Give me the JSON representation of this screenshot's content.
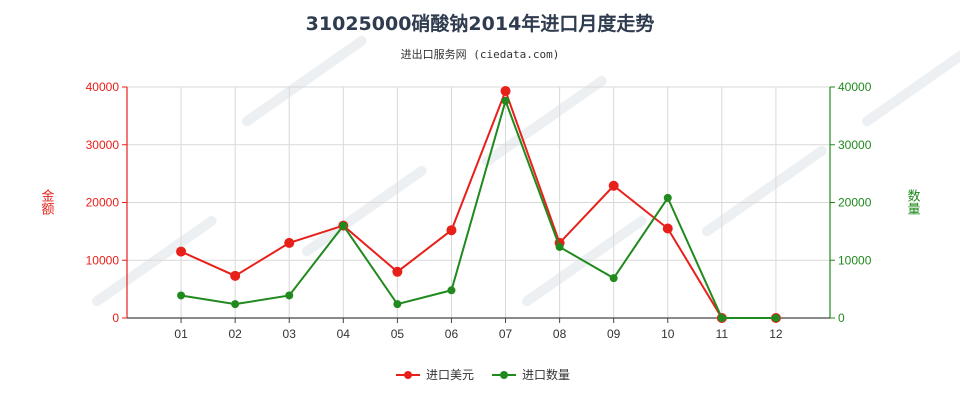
{
  "colors": {
    "left_axis": "#e8201a",
    "right_axis": "#208a1e",
    "grid": "#d9d9d9",
    "axis_line": "#444444"
  },
  "chart_data": {
    "type": "line",
    "title": "31025000硝酸钠2014年进口月度走势",
    "subtitle": "进出口服务网 (ciedata.com)",
    "categories": [
      "01",
      "02",
      "03",
      "04",
      "05",
      "06",
      "07",
      "08",
      "09",
      "10",
      "11",
      "12"
    ],
    "y_left": {
      "label": "金额",
      "ylim": [
        0,
        40000
      ],
      "ticks": [
        0,
        10000,
        20000,
        30000,
        40000
      ]
    },
    "y_right": {
      "label": "数量",
      "ylim": [
        0,
        40000
      ],
      "ticks": [
        0,
        10000,
        20000,
        30000,
        40000
      ]
    },
    "grid": true,
    "legend_position": "bottom-center",
    "series": [
      {
        "name": "进口美元",
        "axis": "left",
        "color": "#e8201a",
        "values": [
          11500,
          7300,
          13000,
          16000,
          8000,
          15200,
          39300,
          13000,
          22900,
          15500,
          0,
          0
        ]
      },
      {
        "name": "进口数量",
        "axis": "right",
        "color": "#208a1e",
        "values": [
          3900,
          2400,
          3900,
          16000,
          2400,
          4800,
          37600,
          12300,
          6900,
          20800,
          0,
          0
        ]
      }
    ]
  }
}
